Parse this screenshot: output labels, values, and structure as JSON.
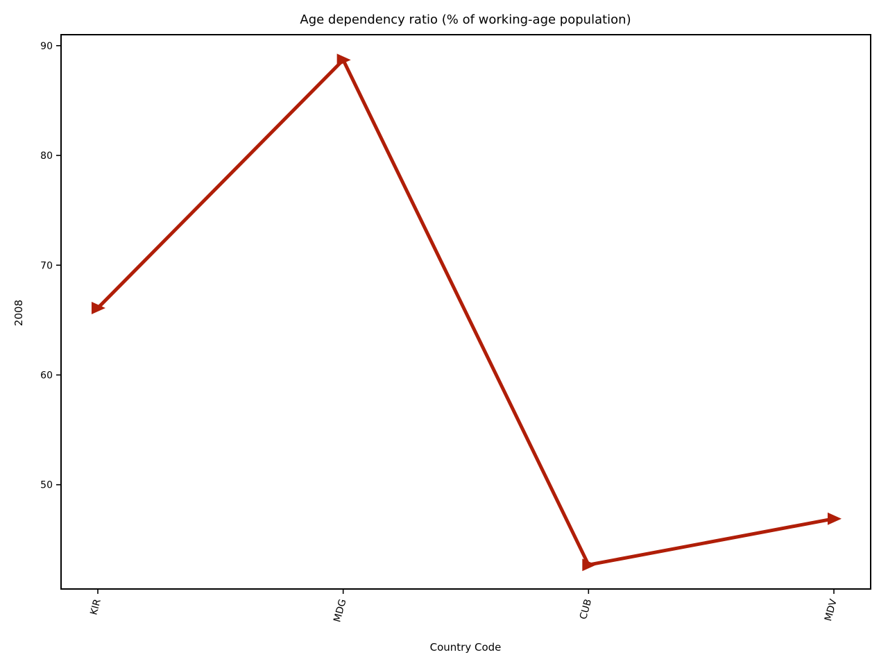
{
  "chart_data": {
    "type": "line",
    "title": "Age dependency ratio (% of working-age population)",
    "xlabel": "Country Code",
    "ylabel": "2008",
    "categories": [
      "KIR",
      "MDG",
      "CUB",
      "MDV"
    ],
    "series": [
      {
        "values": [
          66.1,
          88.7,
          42.7,
          46.9
        ],
        "color": "#b01e08",
        "marker": "right-triangle"
      }
    ],
    "yticks": [
      50,
      60,
      70,
      80,
      90
    ],
    "ylim": [
      40.5,
      91
    ],
    "grid": false,
    "legend": "none"
  }
}
